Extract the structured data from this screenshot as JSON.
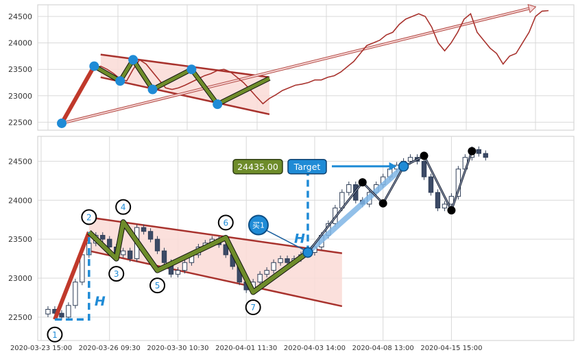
{
  "chart_data": [
    {
      "type": "line",
      "title": "",
      "yticks": [
        22500,
        23000,
        23500,
        24000,
        24500
      ],
      "ylim": [
        22350,
        24720
      ],
      "xlim": [
        0,
        75
      ],
      "grid": true,
      "colors": {
        "line": "#a8322d",
        "channel": "#a8322d",
        "channel_fill": "#fadbd6",
        "zigzag": "#6e8c2a",
        "pivot": "#1f8bd6",
        "arrow": "#f2b8b8"
      },
      "series": [
        {
          "values": [
            22480,
            22700,
            22900,
            23100,
            23350,
            23520,
            23560,
            23500,
            23420,
            23320,
            23280,
            23500,
            23680,
            23600,
            23450,
            23300,
            23150,
            23120,
            23150,
            23200,
            23260,
            23320,
            23380,
            23420,
            23480,
            23500,
            23450,
            23350,
            23250,
            23120,
            22980,
            22850,
            22950,
            23020,
            23100,
            23150,
            23200,
            23220,
            23250,
            23300,
            23300,
            23350,
            23380,
            23450,
            23550,
            23650,
            23800,
            23950,
            24000,
            24050,
            24150,
            24200,
            24350,
            24450,
            24500,
            24550,
            24500,
            24300,
            24000,
            23850,
            24000,
            24200,
            24450,
            24550,
            24200,
            24050,
            23900,
            23800,
            23600,
            23750,
            23800,
            24000,
            24200,
            24500,
            24600,
            24610
          ]
        }
      ],
      "channel": {
        "upper": [
          [
            6,
            23780
          ],
          [
            32,
            23350
          ]
        ],
        "lower": [
          [
            6,
            23350
          ],
          [
            32,
            22650
          ]
        ]
      },
      "zigzag": [
        [
          0,
          22480
        ],
        [
          5,
          23560
        ],
        [
          9,
          23280
        ],
        [
          11,
          23680
        ],
        [
          14,
          23120
        ],
        [
          20,
          23500
        ],
        [
          24,
          22840
        ],
        [
          32,
          23330
        ]
      ],
      "pivots": [
        [
          0,
          22480
        ],
        [
          5,
          23560
        ],
        [
          9,
          23280
        ],
        [
          11,
          23680
        ],
        [
          14,
          23120
        ],
        [
          20,
          23500
        ],
        [
          24,
          22840
        ]
      ],
      "trend_arrow": [
        [
          0,
          22480
        ],
        [
          72,
          24650
        ]
      ]
    },
    {
      "type": "candlestick",
      "title": "",
      "yticks": [
        22500,
        23000,
        23500,
        24000,
        24500
      ],
      "ylim": [
        22200,
        24820
      ],
      "xlim": [
        0,
        75
      ],
      "grid": true,
      "x_tick_labels": [
        {
          "x": 0,
          "label": "2020-03-23 15:00"
        },
        {
          "x": 10,
          "label": "2020-03-26 09:30"
        },
        {
          "x": 20,
          "label": "2020-03-30 10:30"
        },
        {
          "x": 30,
          "label": "2020-04-01 11:30"
        },
        {
          "x": 40,
          "label": "2020-04-03 14:00"
        },
        {
          "x": 50,
          "label": "2020-04-08 13:00"
        },
        {
          "x": 60,
          "label": "2020-04-15 15:00"
        }
      ],
      "close": [
        22600,
        22550,
        22500,
        22650,
        22950,
        23300,
        23450,
        23550,
        23500,
        23400,
        23300,
        23350,
        23250,
        23650,
        23600,
        23500,
        23350,
        23200,
        23050,
        23100,
        23200,
        23300,
        23400,
        23450,
        23500,
        23430,
        23300,
        23150,
        22950,
        22850,
        22950,
        23050,
        23100,
        23200,
        23250,
        23200,
        23250,
        23300,
        23330,
        23400,
        23550,
        23700,
        23900,
        24100,
        24200,
        24000,
        23950,
        24100,
        24200,
        24300,
        24400,
        24450,
        24500,
        24550,
        24500,
        24300,
        24100,
        23900,
        23950,
        24050,
        24400,
        24550,
        24650,
        24600,
        24550
      ],
      "channel": {
        "upper": [
          [
            7,
            23780
          ],
          [
            44,
            23320
          ]
        ],
        "lower": [
          [
            7,
            23350
          ],
          [
            44,
            22640
          ]
        ]
      },
      "zigzag": [
        {
          "id": "1",
          "x": 2,
          "y": 22470
        },
        {
          "id": "2",
          "x": 7,
          "y": 23590
        },
        {
          "id": "3",
          "x": 11,
          "y": 23250
        },
        {
          "id": "4",
          "x": 12,
          "y": 23720
        },
        {
          "id": "5",
          "x": 17,
          "y": 23100
        },
        {
          "id": "6",
          "x": 27,
          "y": 23520
        },
        {
          "id": "7",
          "x": 31,
          "y": 22820
        },
        {
          "id": "",
          "x": 39,
          "y": 23330
        }
      ],
      "upswing": [
        [
          39,
          23330
        ],
        [
          47,
          24230
        ],
        [
          50,
          23960
        ],
        [
          53,
          24430
        ],
        [
          56,
          24570
        ],
        [
          60,
          23870
        ],
        [
          63,
          24630
        ]
      ],
      "black_pivots": [
        [
          47,
          24230
        ],
        [
          50,
          23960
        ],
        [
          56,
          24570
        ],
        [
          60,
          23870
        ],
        [
          63,
          24630
        ]
      ],
      "target_value": 24435.0,
      "annotations": {
        "value_box": "24435.00",
        "target_box": "Target",
        "measure_label_left": "H",
        "measure_label_right": "H",
        "buy_marker": "买1"
      }
    }
  ]
}
